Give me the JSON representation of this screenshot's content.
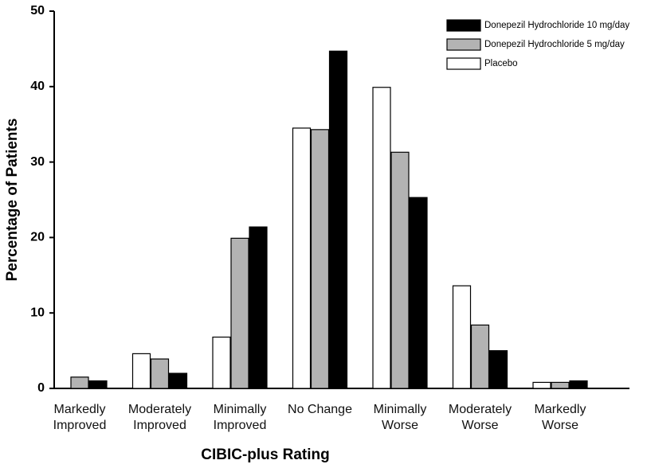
{
  "chart_data": {
    "type": "bar",
    "x_label": "CIBIC-plus Rating",
    "y_label": "Percentage of Patients",
    "categories": [
      "Markedly Improved",
      "Moderately Improved",
      "Minimally Improved",
      "No Change",
      "Minimally Worse",
      "Moderately Worse",
      "Markedly Worse"
    ],
    "series": [
      {
        "name": "Donepezil Hydrochloride 10 mg/day",
        "color": "#000000",
        "values": [
          1.0,
          2.0,
          21.4,
          44.7,
          25.3,
          5.0,
          1.0
        ]
      },
      {
        "name": "Donepezil Hydrochloride 5 mg/day",
        "color": "#b3b3b3",
        "values": [
          1.5,
          3.9,
          19.9,
          34.3,
          31.3,
          8.4,
          0.8
        ]
      },
      {
        "name": "Placebo",
        "color": "#ffffff",
        "values": [
          0,
          4.6,
          6.8,
          34.5,
          39.9,
          13.6,
          0.8
        ]
      }
    ],
    "ylim": [
      0,
      50
    ],
    "yticks": [
      0,
      10,
      20,
      30,
      40,
      50
    ],
    "grid": false,
    "legend": "top-right"
  }
}
